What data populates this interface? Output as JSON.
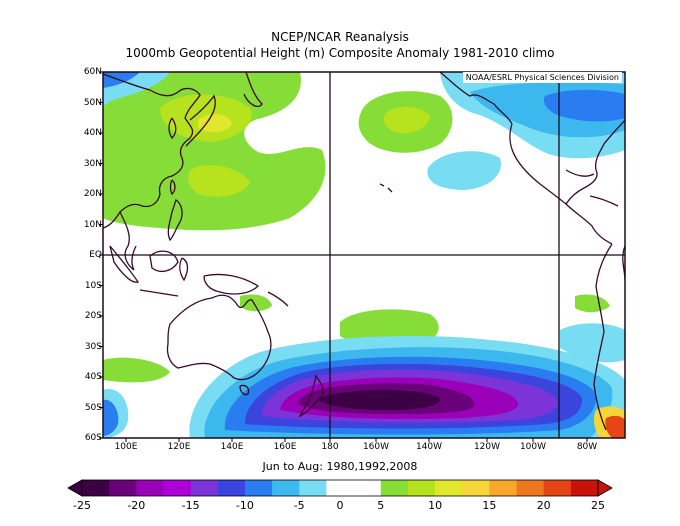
{
  "title": "NCEP/NCAR Reanalysis",
  "subtitle": "1000mb Geopotential Height (m) Composite Anomaly 1981-2010 climo",
  "credit": "NOAA/ESRL Physical Sciences Division",
  "period": "Jun to Aug: 1980,1992,2008",
  "lat_labels": [
    "60N",
    "50N",
    "40N",
    "30N",
    "20N",
    "10N",
    "EQ",
    "10S",
    "20S",
    "30S",
    "40S",
    "50S",
    "60S"
  ],
  "lon_labels": [
    "100E",
    "120E",
    "140E",
    "160E",
    "180",
    "160W",
    "140W",
    "120W",
    "100W",
    "80W"
  ],
  "colorbar": {
    "ticks": [
      "-25",
      "-20",
      "-15",
      "-10",
      "-5",
      "0",
      "5",
      "10",
      "15",
      "20",
      "25"
    ],
    "colors": [
      "#3c0044",
      "#6a007a",
      "#9a00b8",
      "#b000d8",
      "#7c33d8",
      "#3b44dd",
      "#2a7cf1",
      "#3cb8ef",
      "#78ddf2",
      "#ffffff",
      "#ffffff",
      "#86dd38",
      "#b7e21e",
      "#e1e72c",
      "#f5d63a",
      "#f7a72a",
      "#ef7720",
      "#e64515",
      "#c8120a"
    ]
  },
  "map": {
    "lon_range": [
      "90E",
      "65W"
    ],
    "lat_range": [
      "60S",
      "60N"
    ],
    "grid_lines": [
      "180",
      "90W",
      "EQ"
    ]
  }
}
